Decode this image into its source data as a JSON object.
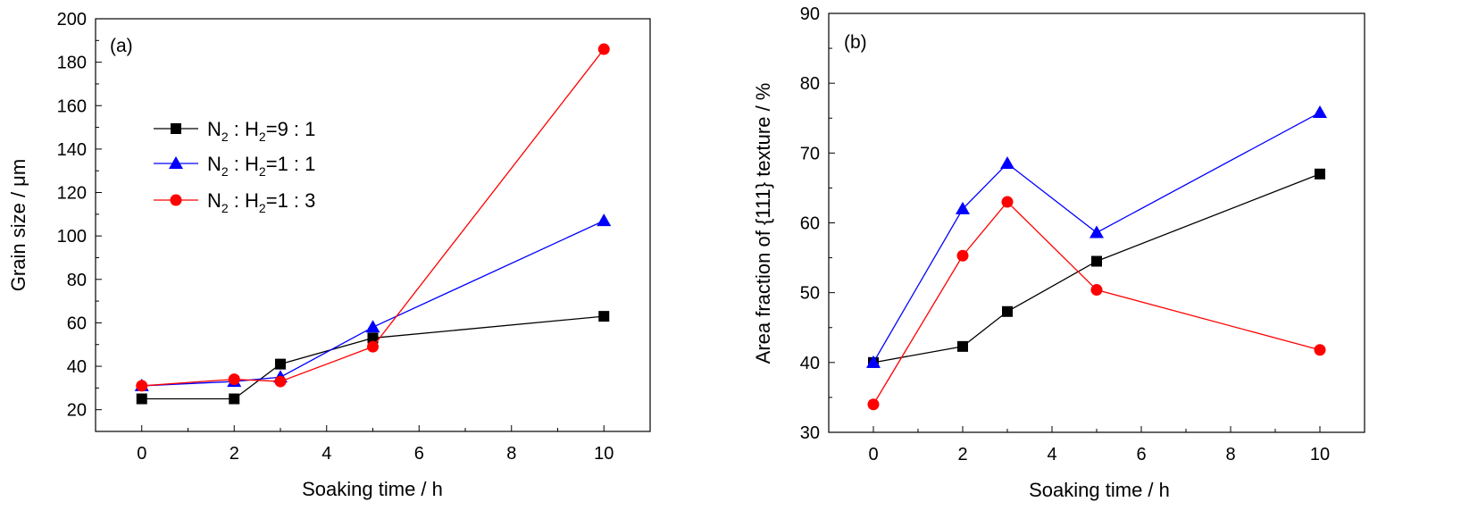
{
  "chart_data": [
    {
      "type": "line",
      "panel_label": "(a)",
      "xlabel": "Soaking time / h",
      "ylabel": "Grain size / μm",
      "xlim": [
        -1,
        11
      ],
      "ylim": [
        10,
        200
      ],
      "xticks": [
        0,
        2,
        4,
        6,
        8,
        10
      ],
      "yticks": [
        20,
        40,
        60,
        80,
        100,
        120,
        140,
        160,
        180,
        200
      ],
      "legend_position": "upper-left",
      "x": [
        0,
        2,
        3,
        5,
        10
      ],
      "series": [
        {
          "name": "N₂ : H₂=9 : 1",
          "legend_base": "N",
          "legend_sub1": "2",
          "legend_mid": " : H",
          "legend_sub2": "2",
          "legend_tail": "=9 : 1",
          "color": "#000000",
          "marker": "square",
          "values": [
            25,
            25,
            41,
            53,
            63
          ]
        },
        {
          "name": "N₂ : H₂=1 : 1",
          "legend_base": "N",
          "legend_sub1": "2",
          "legend_mid": " : H",
          "legend_sub2": "2",
          "legend_tail": "=1 : 1",
          "color": "#0000ff",
          "marker": "triangle",
          "values": [
            31,
            33,
            35,
            58,
            107
          ]
        },
        {
          "name": "N₂ : H₂=1 : 3",
          "legend_base": "N",
          "legend_sub1": "2",
          "legend_mid": " : H",
          "legend_sub2": "2",
          "legend_tail": "=1 : 3",
          "color": "#ff0000",
          "marker": "circle",
          "values": [
            31,
            34,
            33,
            49,
            186
          ]
        }
      ]
    },
    {
      "type": "line",
      "panel_label": "(b)",
      "xlabel": "Soaking time / h",
      "ylabel": "Area fraction of {111} texture / %",
      "xlim": [
        -1,
        11
      ],
      "ylim": [
        30,
        90
      ],
      "xticks": [
        0,
        2,
        4,
        6,
        8,
        10
      ],
      "yticks": [
        30,
        40,
        50,
        60,
        70,
        80,
        90
      ],
      "x": [
        0,
        2,
        3,
        5,
        10
      ],
      "series": [
        {
          "color": "#000000",
          "marker": "square",
          "values": [
            40,
            42.3,
            47.3,
            54.5,
            67
          ]
        },
        {
          "color": "#0000ff",
          "marker": "triangle",
          "values": [
            40,
            62,
            68.5,
            58.6,
            75.8
          ]
        },
        {
          "color": "#ff0000",
          "marker": "circle",
          "values": [
            34,
            55.3,
            63,
            50.4,
            41.8
          ]
        }
      ]
    }
  ]
}
